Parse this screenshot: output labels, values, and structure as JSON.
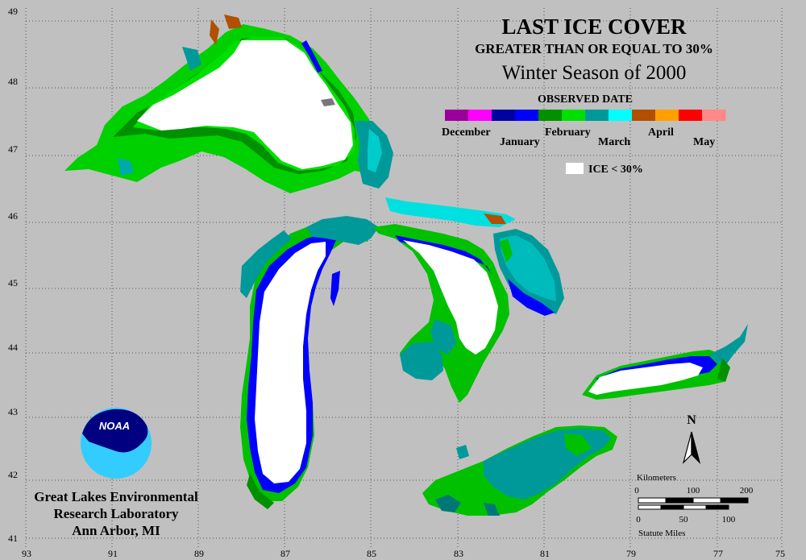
{
  "title": "LAST ICE COVER",
  "subtitle": "GREATER THAN OR EQUAL TO 30%",
  "season": "Winter Season of 2000",
  "legend": {
    "heading": "OBSERVED DATE",
    "segments": [
      {
        "color": "#9a0099"
      },
      {
        "color": "#ff00ff"
      },
      {
        "color": "#0000a0"
      },
      {
        "color": "#0000ff"
      },
      {
        "color": "#009000"
      },
      {
        "color": "#00e000"
      },
      {
        "color": "#009999"
      },
      {
        "color": "#00ffff"
      },
      {
        "color": "#b05000"
      },
      {
        "color": "#ffa000"
      },
      {
        "color": "#ff0000"
      },
      {
        "color": "#ff8888"
      }
    ],
    "months": [
      "December",
      "January",
      "February",
      "March",
      "April",
      "May"
    ],
    "no_ice_label": "ICE < 30%"
  },
  "axes": {
    "lat": [
      "49",
      "48",
      "47",
      "46",
      "45",
      "44",
      "43",
      "42",
      "41"
    ],
    "lon": [
      "93",
      "91",
      "89",
      "87",
      "85",
      "83",
      "81",
      "79",
      "77",
      "75"
    ]
  },
  "organization": {
    "line1": "Great Lakes Environmental",
    "line2": "Research Laboratory",
    "line3": "Ann Arbor, MI",
    "logo_text": "NOAA"
  },
  "north_label": "N",
  "scale": {
    "km_title": "Kilometers",
    "km_ticks": [
      "0",
      "100",
      "200"
    ],
    "mi_ticks": [
      "0",
      "50",
      "100"
    ],
    "mi_title": "Statute Miles"
  },
  "colors": {
    "background": "#c0c0c0",
    "ice_none": "#ffffff",
    "january": "#0000ff",
    "february_dark": "#009000",
    "february": "#00e000",
    "march_dark": "#009999",
    "march": "#00ffff",
    "april": "#b05000"
  }
}
